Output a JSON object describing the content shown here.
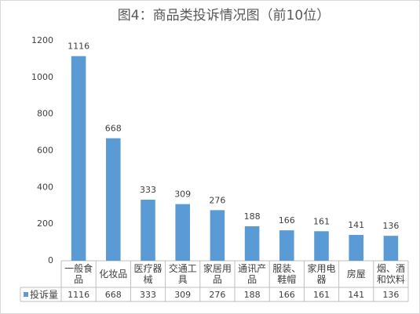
{
  "chart_data": {
    "type": "bar",
    "title": "图4：商品类投诉情况图（前10位）",
    "categories": [
      "一般食品",
      "化妆品",
      "医疗器械",
      "交通工具",
      "家居用品",
      "通讯产品",
      "服装、鞋帽",
      "家用电器",
      "房屋",
      "烟、酒和饮料"
    ],
    "series": [
      {
        "name": "投诉量",
        "color": "#5b9bd5",
        "values": [
          1116,
          668,
          333,
          309,
          276,
          188,
          166,
          161,
          141,
          136
        ]
      }
    ],
    "ylim": [
      0,
      1200
    ],
    "yticks": [
      0,
      200,
      400,
      600,
      800,
      1000,
      1200
    ],
    "grid": false,
    "data_table": true
  }
}
